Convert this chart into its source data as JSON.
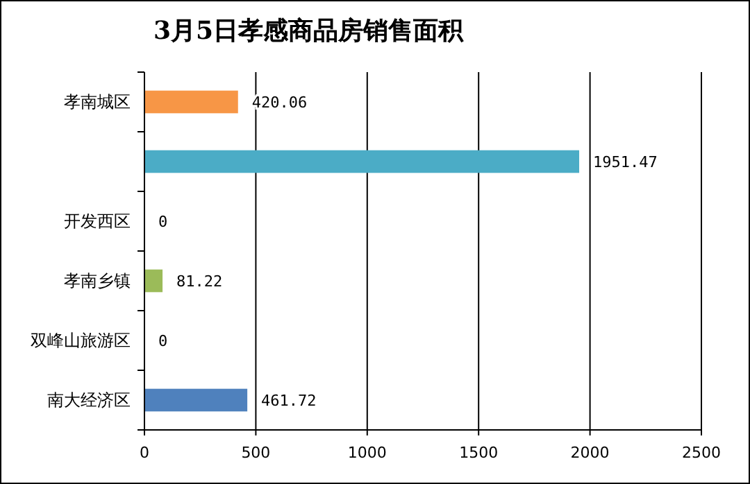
{
  "chart_data": {
    "type": "bar",
    "orientation": "horizontal",
    "title": "3月5日孝感商品房销售面积",
    "categories": [
      "孝南城区",
      null,
      "开发西区",
      "孝南乡镇",
      "双峰山旅游区",
      "南大经济区"
    ],
    "values": [
      420.06,
      1951.47,
      0,
      81.22,
      0,
      461.72
    ],
    "colors": [
      "#f79646",
      "#4bacc6",
      "#8064a2",
      "#9bbb59",
      "#c0504d",
      "#4f81bd"
    ],
    "xlim": [
      0,
      2500
    ],
    "xticks": [
      0,
      500,
      1000,
      1500,
      2000,
      2500
    ],
    "grid": "x",
    "data_labels": true
  }
}
